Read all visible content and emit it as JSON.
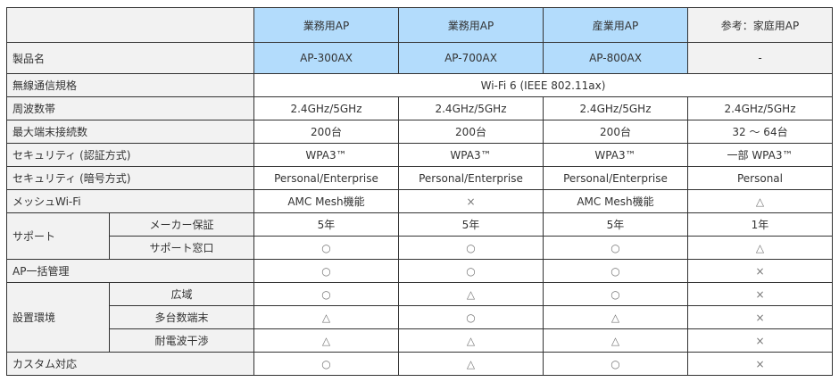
{
  "header": {
    "columns": [
      "業務用AP",
      "業務用AP",
      "産業用AP",
      "参考：家庭用AP"
    ]
  },
  "product_row": {
    "label": "製品名",
    "values": [
      "AP-300AX",
      "AP-700AX",
      "AP-800AX",
      "-"
    ]
  },
  "standard_row": {
    "label": "無線通信規格",
    "value": "Wi-Fi 6 (IEEE 802.11ax)"
  },
  "rows": [
    {
      "label": "周波数帯",
      "values": [
        "2.4GHz/5GHz",
        "2.4GHz/5GHz",
        "2.4GHz/5GHz",
        "2.4GHz/5GHz"
      ]
    },
    {
      "label": "最大端末接続数",
      "values": [
        "200台",
        "200台",
        "200台",
        "32 〜 64台"
      ]
    },
    {
      "label": "セキュリティ (認証方式)",
      "values": [
        "WPA3™",
        "WPA3™",
        "WPA3™",
        "一部 WPA3™"
      ]
    },
    {
      "label": "セキュリティ (暗号方式)",
      "values": [
        "Personal/Enterprise",
        "Personal/Enterprise",
        "Personal/Enterprise",
        "Personal"
      ]
    },
    {
      "label": "メッシュWi-Fi",
      "values": [
        "AMC Mesh機能",
        "×",
        "AMC Mesh機能",
        "△"
      ]
    }
  ],
  "support": {
    "label": "サポート",
    "rows": [
      {
        "label": "メーカー保証",
        "values": [
          "5年",
          "5年",
          "5年",
          "1年"
        ]
      },
      {
        "label": "サポート窓口",
        "values": [
          "○",
          "○",
          "○",
          "△"
        ]
      }
    ]
  },
  "management_row": {
    "label": "AP一括管理",
    "values": [
      "○",
      "○",
      "○",
      "×"
    ]
  },
  "environment": {
    "label": "設置環境",
    "rows": [
      {
        "label": "広域",
        "values": [
          "○",
          "△",
          "○",
          "×"
        ]
      },
      {
        "label": "多台数端末",
        "values": [
          "△",
          "○",
          "△",
          "×"
        ]
      },
      {
        "label": "耐電波干渉",
        "values": [
          "△",
          "△",
          "△",
          "×"
        ]
      }
    ]
  },
  "custom_row": {
    "label": "カスタム対応",
    "values": [
      "○",
      "△",
      "○",
      "×"
    ]
  }
}
